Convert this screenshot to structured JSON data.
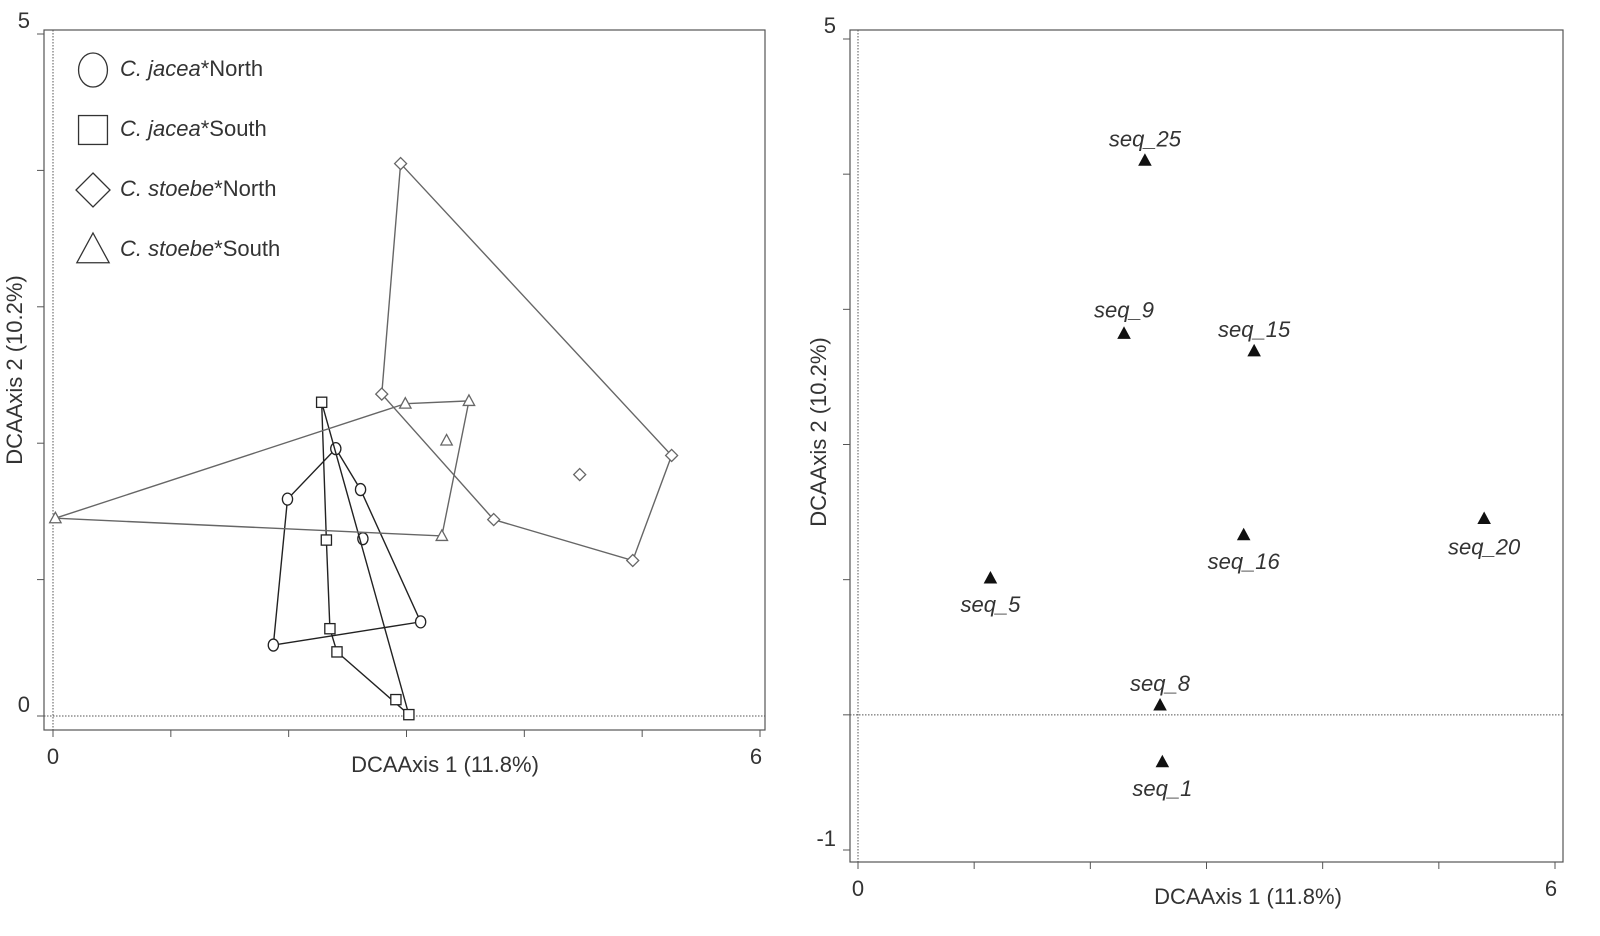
{
  "chart_data": [
    {
      "type": "scatter",
      "xlabel": "DCAAxis 1 (11.8%)",
      "ylabel": "DCAAxis 2 (10.2%)",
      "xlim": [
        0,
        6
      ],
      "ylim": [
        0,
        5
      ],
      "xticks": [
        0,
        6
      ],
      "yticks": [
        0,
        5
      ],
      "legend": "upper left",
      "hulls": true,
      "series": [
        {
          "name": "C. jacea*North",
          "marker": "circle",
          "color": "#222222",
          "x": [
            1.99,
            2.4,
            2.61,
            2.63,
            3.12,
            1.87
          ],
          "values": [
            1.59,
            1.96,
            1.66,
            1.3,
            0.69,
            0.52
          ]
        },
        {
          "name": "C. jacea*South",
          "marker": "square",
          "color": "#222222",
          "x": [
            2.28,
            2.32,
            2.35,
            2.41,
            2.91,
            3.02
          ],
          "values": [
            2.3,
            1.29,
            0.64,
            0.47,
            0.12,
            0.01
          ]
        },
        {
          "name": "C. stoebe*North",
          "marker": "diamond",
          "color": "#666666",
          "x": [
            2.95,
            2.79,
            3.74,
            4.92,
            5.25,
            4.47
          ],
          "values": [
            4.05,
            2.36,
            1.44,
            1.14,
            1.91,
            1.77
          ]
        },
        {
          "name": "C. stoebe*South",
          "marker": "triangle",
          "color": "#666666",
          "x": [
            0.02,
            2.99,
            3.53,
            3.34,
            3.3
          ],
          "values": [
            1.45,
            2.29,
            2.31,
            2.02,
            1.32
          ]
        }
      ]
    },
    {
      "type": "scatter",
      "xlabel": "DCAAxis 1 (11.8%)",
      "ylabel": "DCAAxis 2 (10.2%)",
      "xlim": [
        0,
        6
      ],
      "ylim": [
        -1,
        5
      ],
      "xticks": [
        0,
        6
      ],
      "yticks": [
        -1,
        5
      ],
      "hulls": false,
      "series": [
        {
          "marker": "filled-triangle",
          "color": "#111111",
          "labels": [
            "seq_25",
            "seq_9",
            "seq_15",
            "seq_16",
            "seq_20",
            "seq_5",
            "seq_8",
            "seq_1"
          ],
          "x": [
            2.47,
            2.29,
            3.41,
            3.32,
            5.39,
            1.14,
            2.6,
            2.62
          ],
          "values": [
            4.1,
            2.82,
            2.69,
            1.33,
            1.45,
            1.01,
            0.07,
            -0.35
          ]
        }
      ]
    }
  ]
}
